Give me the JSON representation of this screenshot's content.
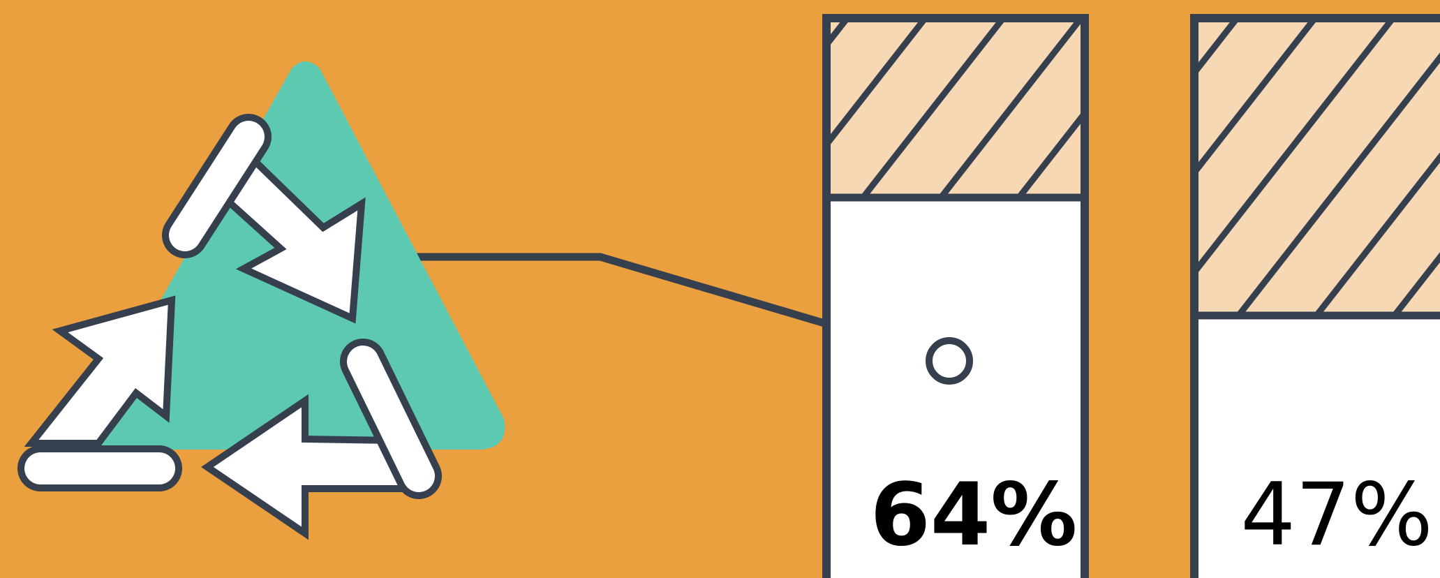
{
  "colors": {
    "background": "#EBA040",
    "triangle": "#5DC9B1",
    "outline": "#363F4D",
    "arrow_fill": "#FFFFFF",
    "bar_fill": "#FFFFFF",
    "hatch_fill": "#F7D8B4"
  },
  "icons": [
    "recycle-icon"
  ],
  "bars": [
    {
      "label": "64%",
      "value": 0.64
    },
    {
      "label": "47%",
      "value": 0.47
    }
  ]
}
